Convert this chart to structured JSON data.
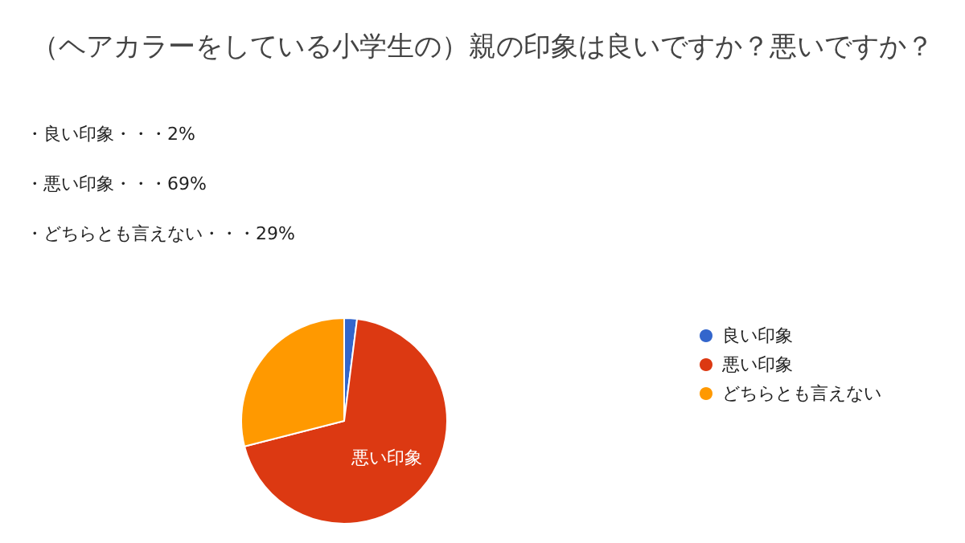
{
  "chart_data": {
    "type": "pie",
    "title": "（ヘアカラーをしている小学生の）親の印象は良いですか？悪いですか？",
    "annotations": [
      "・良い印象・・・2%",
      "・悪い印象・・・69%",
      "・どちらとも言えない・・・29%"
    ],
    "categories": [
      "良い印象",
      "悪い印象",
      "どちらとも言えない"
    ],
    "values": [
      2,
      69,
      29
    ],
    "colors": [
      "#3366cc",
      "#dc3912",
      "#ff9900"
    ],
    "legend": "right"
  }
}
